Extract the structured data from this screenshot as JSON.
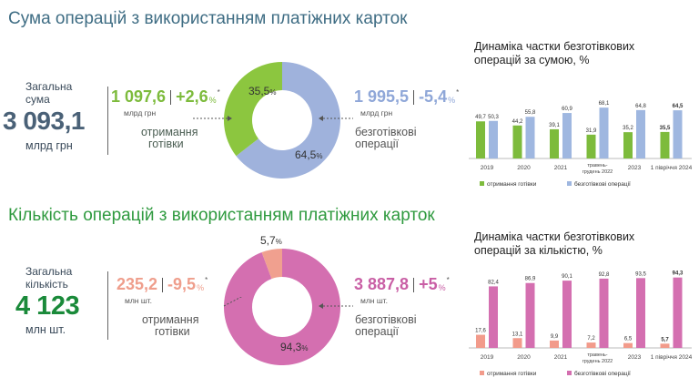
{
  "colors": {
    "title_top": "#3f6d84",
    "title_bottom": "#2f9a3f",
    "cash_top": "#8cc63f",
    "cashless_top": "#9fb2dc",
    "cash_bottom": "#f0a08f",
    "cashless_bottom": "#d46fb0",
    "big_top": "#4a6177",
    "big_bottom": "#1a8a3a"
  },
  "top": {
    "title": "Сума операцій з використанням платіжних карток",
    "total_label": "Загальна сума",
    "total_value": "3 093,1",
    "total_unit": "млрд грн",
    "cash": {
      "value": "1 097,6",
      "change": "+2,6",
      "percent_sign": "%",
      "star": "*",
      "unit": "млрд грн",
      "caption_1": "отримання",
      "caption_2": "готівки"
    },
    "cashless": {
      "value": "1 995,5",
      "change": "-5,4",
      "percent_sign": "%",
      "star": "*",
      "unit": "млрд грн",
      "caption_1": "безготівкові",
      "caption_2": "операції"
    },
    "donut": {
      "cash_label": "35,5",
      "cashless_label": "64,5",
      "pct": "%"
    }
  },
  "bottom": {
    "title": "Кількість операцій з використанням платіжних карток",
    "total_label": "Загальна кількість",
    "total_value": "4 123",
    "total_unit": "млн шт.",
    "cash": {
      "value": "235,2",
      "change": "-9,5",
      "percent_sign": "%",
      "star": "*",
      "unit": "млн шт.",
      "caption_1": "отримання",
      "caption_2": "готівки"
    },
    "cashless": {
      "value": "3 887,8",
      "change": "+5",
      "percent_sign": "%",
      "star": "*",
      "unit": "млн шт.",
      "caption_1": "безготівкові",
      "caption_2": "операції"
    },
    "donut": {
      "cash_label": "5,7",
      "cashless_label": "94,3",
      "pct": "%"
    }
  },
  "chart_data": [
    {
      "type": "donut",
      "categories": [
        "отримання готівки",
        "безготівкові операції"
      ],
      "values": [
        35.5,
        64.5
      ],
      "colors": [
        "#8cc63f",
        "#9fb2dc"
      ]
    },
    {
      "type": "donut",
      "categories": [
        "отримання готівки",
        "безготівкові операції"
      ],
      "values": [
        5.7,
        94.3
      ],
      "colors": [
        "#f0a08f",
        "#d46fb0"
      ]
    },
    {
      "type": "bar",
      "title_1": "Динаміка частки безготівкових",
      "title_2": "операцій за сумою, %",
      "categories": [
        "2019",
        "2020",
        "2021",
        "травень-грудень 2022",
        "2023",
        "1 півріччя 2024"
      ],
      "category_lines": [
        [
          "2019"
        ],
        [
          "2020"
        ],
        [
          "2021"
        ],
        [
          "травень-",
          "грудень 2022"
        ],
        [
          "2023"
        ],
        [
          "1 півріччя 2024"
        ]
      ],
      "series": [
        {
          "name": "отримання готівки",
          "values": [
            49.7,
            44.2,
            39.1,
            31.9,
            35.2,
            35.5
          ],
          "labels": [
            "49,7",
            "44,2",
            "39,1",
            "31,9",
            "35,2",
            "35,5"
          ],
          "color": "#7dbb3c"
        },
        {
          "name": "безготівкові операції",
          "values": [
            50.3,
            55.8,
            60.9,
            68.1,
            64.8,
            64.5
          ],
          "labels": [
            "50,3",
            "55,8",
            "60,9",
            "68,1",
            "64,8",
            "64,5"
          ],
          "color": "#9fb7e0"
        }
      ],
      "last_bold": true,
      "ylim": [
        0,
        100
      ]
    },
    {
      "type": "bar",
      "title_1": "Динаміка частки безготівкових",
      "title_2": "операцій за кількістю, %",
      "categories": [
        "2019",
        "2020",
        "2021",
        "травень-грудень 2022",
        "2023",
        "1 півріччя 2024"
      ],
      "category_lines": [
        [
          "2019"
        ],
        [
          "2020"
        ],
        [
          "2021"
        ],
        [
          "травень-",
          "грудень 2022"
        ],
        [
          "2023"
        ],
        [
          "1 півріччя 2024"
        ]
      ],
      "series": [
        {
          "name": "отримання готівки",
          "values": [
            17.6,
            13.1,
            9.9,
            7.2,
            6.5,
            5.7
          ],
          "labels": [
            "17,6",
            "13,1",
            "9,9",
            "7,2",
            "6,5",
            "5,7"
          ],
          "color": "#f29b8b"
        },
        {
          "name": "безготівкові операції",
          "values": [
            82.4,
            86.9,
            90.1,
            92.8,
            93.5,
            94.3
          ],
          "labels": [
            "82,4",
            "86,9",
            "90,1",
            "92,8",
            "93,5",
            "94,3"
          ],
          "color": "#d46fb0"
        }
      ],
      "last_bold": true,
      "ylim": [
        0,
        100
      ]
    }
  ]
}
